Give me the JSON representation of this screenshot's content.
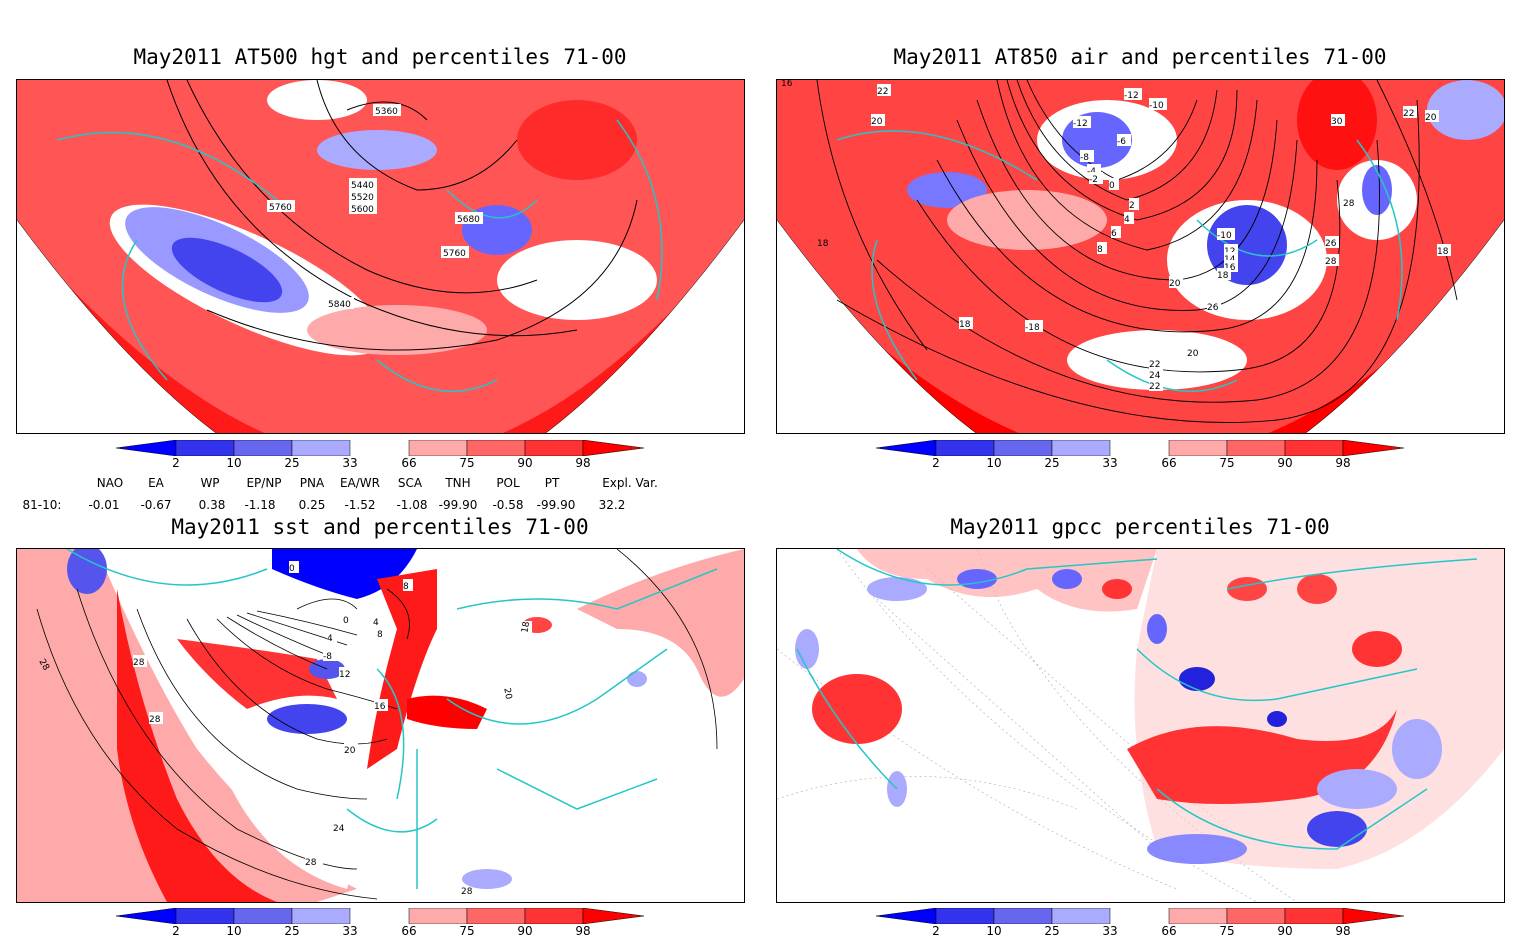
{
  "panels": [
    {
      "title": "May2011 AT500 hgt and percentiles 71-00",
      "contour_labels": [
        "5360",
        "5440",
        "5520",
        "5600",
        "5680",
        "5760",
        "5760",
        "5840"
      ]
    },
    {
      "title": "May2011 AT850 air and percentiles 71-00",
      "contour_labels": [
        "16",
        "22",
        "20",
        "18",
        "-12",
        "-10",
        "-12",
        "-8",
        "-6",
        "-4",
        "-2",
        "0",
        "2",
        "4",
        "6",
        "8",
        "-10",
        "12",
        "14",
        "16",
        "18",
        "20",
        "22",
        "24",
        "22",
        "20",
        "26",
        "28",
        "26",
        "28",
        "30",
        "22",
        "20",
        "18",
        "18",
        "-18"
      ]
    },
    {
      "title": "May2011 sst and percentiles 71-00",
      "contour_labels": [
        "0",
        "4",
        "8",
        "0",
        "4",
        "8",
        "-8",
        "12",
        "16",
        "20",
        "24",
        "28",
        "28",
        "28",
        "28",
        "18",
        "20",
        "28"
      ]
    },
    {
      "title": "May2011 gpcc percentiles 71-00",
      "contour_labels": []
    }
  ],
  "colorbar": {
    "labels": [
      "2",
      "10",
      "25",
      "33",
      "66",
      "75",
      "90",
      "98"
    ],
    "colors": [
      "#0000ff",
      "#3333ee",
      "#6666ee",
      "#aaaaff",
      "#ffffff",
      "#ffaaaa",
      "#ff6666",
      "#ff3333",
      "#ff0000"
    ]
  },
  "indices": {
    "headers": [
      "NAO",
      "EA",
      "WP",
      "EP/NP",
      "PNA",
      "EA/WR",
      "SCA",
      "TNH",
      "POL",
      "PT",
      "Expl. Var."
    ],
    "row_label": "81-10:",
    "values": [
      "-0.01",
      "-0.67",
      "0.38",
      "-1.18",
      "0.25",
      "-1.52",
      "-1.08",
      "-99.90",
      "-0.58",
      "-99.90",
      "32.2"
    ]
  },
  "colors": {
    "border": "#26c6c6",
    "strong_red": "#ff0000",
    "red": "#ff4d4d",
    "light_red": "#ffaaaa",
    "light_blue": "#aaaaff",
    "blue": "#5555ee",
    "strong_blue": "#0000ff"
  }
}
